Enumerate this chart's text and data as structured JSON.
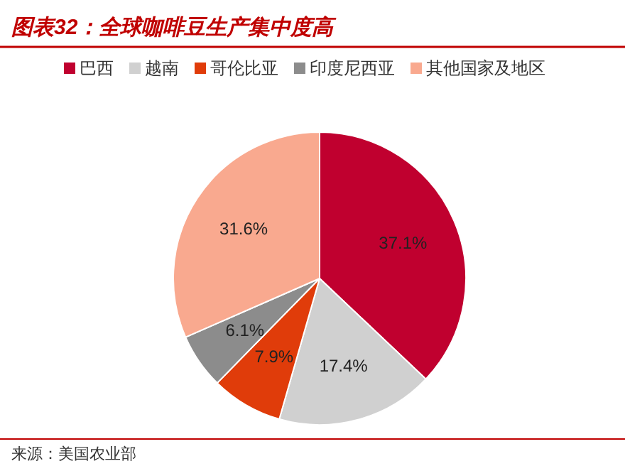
{
  "chart_data": {
    "type": "pie",
    "title": "图表32：全球咖啡豆生产集中度高",
    "categories": [
      "巴西",
      "越南",
      "哥伦比亚",
      "印度尼西亚",
      "其他国家及地区"
    ],
    "values": [
      37.1,
      17.4,
      7.9,
      6.1,
      31.6
    ],
    "colors": [
      "#c0002f",
      "#d0d0d0",
      "#e03c0a",
      "#8c8c8c",
      "#f9a98f"
    ],
    "value_labels": [
      "37.1%",
      "17.4%",
      "7.9%",
      "6.1%",
      "31.6%"
    ],
    "legend": "top",
    "annotations": [
      "来源：美国农业部"
    ]
  }
}
